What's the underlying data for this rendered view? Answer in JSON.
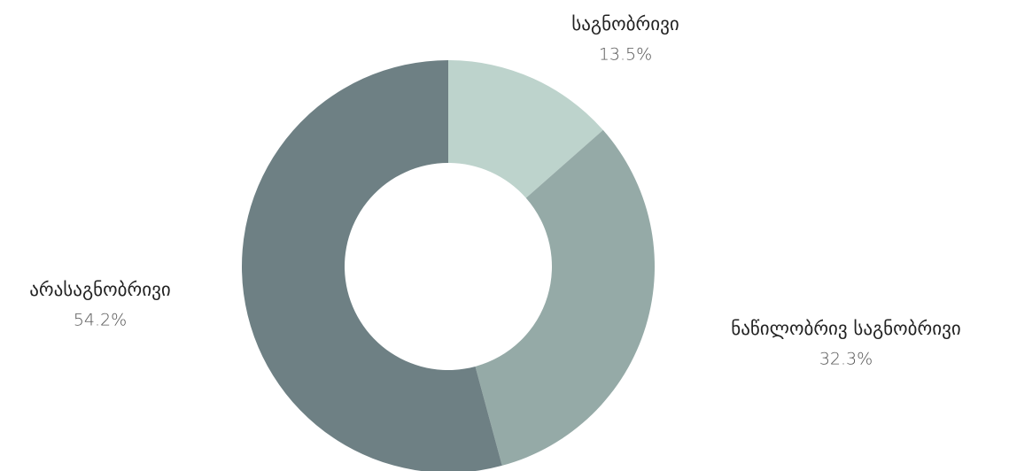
{
  "chart_data": {
    "type": "donut",
    "categories": [
      "საგნობრივი",
      "ნაწილობრივ საგნობრივი",
      "არასაგნობრივი"
    ],
    "values": [
      13.5,
      32.3,
      54.2
    ],
    "value_labels": [
      "13.5%",
      "32.3%",
      "54.2%"
    ],
    "colors": [
      "#bdd3cc",
      "#95aaa7",
      "#6e8084"
    ]
  }
}
